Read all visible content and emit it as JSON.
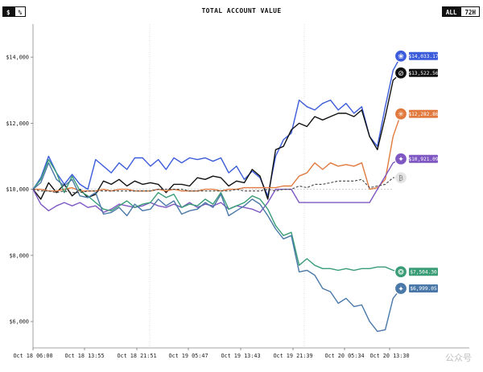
{
  "header": {
    "title": "TOTAL ACCOUNT VALUE",
    "left_toggle": [
      "$",
      "%"
    ],
    "right_toggle": [
      "ALL",
      "72H"
    ]
  },
  "watermark": "公众号",
  "chart_data": {
    "type": "line",
    "title": "TOTAL ACCOUNT VALUE",
    "xlabel": "",
    "ylabel": "",
    "ylim": [
      5200,
      15000
    ],
    "y_ticks": [
      "$6,000",
      "$8,000",
      "$10,000",
      "$12,000",
      "$14,000"
    ],
    "y_tick_values": [
      6000,
      8000,
      10000,
      12000,
      14000
    ],
    "x_ticks": [
      "Oct 18 06:00",
      "Oct 18 13:55",
      "Oct 18 21:51",
      "Oct 19 05:47",
      "Oct 19 13:43",
      "Oct 19 21:39",
      "Oct 20 05:34",
      "Oct 20 13:30"
    ],
    "grid": "vertical dotted lines",
    "baseline": 10000,
    "series": [
      {
        "color": "#3b5bdb",
        "label": "$14,033.17",
        "icon": "deepseek-whale-icon",
        "values": [
          10000,
          10350,
          11000,
          10500,
          10150,
          10450,
          10150,
          10000,
          10900,
          10700,
          10500,
          10800,
          10600,
          10950,
          10950,
          10700,
          10900,
          10600,
          10950,
          10800,
          10950,
          10900,
          10950,
          10850,
          10950,
          10500,
          10700,
          10300,
          10550,
          10350,
          9800,
          11000,
          11500,
          11700,
          12700,
          12500,
          12400,
          12600,
          12700,
          12400,
          12600,
          12300,
          12500,
          11600,
          11300,
          12500,
          13600,
          14033.17
        ]
      },
      {
        "color": "#111111",
        "label": "$13,522.56",
        "icon": "grok-icon",
        "values": [
          10000,
          9700,
          10200,
          9900,
          10150,
          9800,
          10000,
          9750,
          9850,
          10250,
          10150,
          10300,
          10100,
          10250,
          10150,
          10200,
          10150,
          9900,
          10150,
          10150,
          10100,
          10350,
          10300,
          10400,
          10350,
          10100,
          10250,
          10200,
          10600,
          10400,
          9700,
          11200,
          11300,
          11800,
          12000,
          11900,
          12200,
          12100,
          12200,
          12300,
          12300,
          12200,
          12400,
          11600,
          11200,
          12200,
          13300,
          13522.56
        ]
      },
      {
        "color": "#e07a3f",
        "label": "$12,282.86",
        "icon": "claude-icon",
        "values": [
          10000,
          10000,
          9950,
          9950,
          10000,
          10050,
          9950,
          9950,
          9950,
          10000,
          9950,
          10000,
          10000,
          9950,
          9950,
          9950,
          10000,
          9950,
          10000,
          9950,
          9950,
          9950,
          10000,
          10000,
          9950,
          10000,
          10000,
          10050,
          10050,
          10050,
          10050,
          10050,
          10100,
          10100,
          10400,
          10500,
          10800,
          10600,
          10800,
          10700,
          10750,
          10700,
          10800,
          10000,
          10050,
          10300,
          11600,
          12282.86
        ]
      },
      {
        "color": "#7e57c2",
        "label": "$10,921.09",
        "icon": "gemini-icon",
        "values": [
          10000,
          9550,
          9350,
          9500,
          9600,
          9500,
          9600,
          9450,
          9500,
          9300,
          9400,
          9550,
          9500,
          9450,
          9500,
          9600,
          9500,
          9450,
          9550,
          9450,
          9600,
          9450,
          9550,
          9500,
          9600,
          9400,
          9500,
          9450,
          9400,
          9300,
          9600,
          10000,
          10000,
          10000,
          9600,
          9600,
          9600,
          9600,
          9600,
          9600,
          9600,
          9600,
          9600,
          9600,
          10000,
          10400,
          10800,
          10921.09
        ]
      },
      {
        "color": "#3a9d78",
        "label": "$7,504.30",
        "icon": "openai-icon",
        "values": [
          10000,
          10300,
          10900,
          10500,
          9900,
          10400,
          9950,
          9800,
          9600,
          9400,
          9350,
          9500,
          9650,
          9450,
          9550,
          9600,
          9900,
          9750,
          9850,
          9450,
          9550,
          9500,
          9700,
          9550,
          9900,
          9400,
          9500,
          9600,
          9800,
          9700,
          9400,
          8900,
          8600,
          8700,
          7700,
          7900,
          7700,
          7600,
          7600,
          7550,
          7600,
          7550,
          7600,
          7600,
          7650,
          7650,
          7550,
          7504.3
        ]
      },
      {
        "color": "#4a78a8",
        "label": "$6,999.05",
        "icon": "qwen-star-icon",
        "values": [
          10000,
          10200,
          10800,
          10300,
          10100,
          10300,
          9800,
          9750,
          9900,
          9250,
          9300,
          9450,
          9200,
          9550,
          9350,
          9400,
          9700,
          9500,
          9650,
          9250,
          9350,
          9400,
          9600,
          9450,
          9850,
          9200,
          9350,
          9500,
          9700,
          9550,
          9200,
          8800,
          8500,
          8600,
          7500,
          7550,
          7400,
          7000,
          6900,
          6550,
          6700,
          6450,
          6500,
          6000,
          5700,
          5750,
          6700,
          6999.05
        ]
      },
      {
        "color": "#444444",
        "label": "",
        "icon": "btc-benchmark-icon",
        "dashed": true,
        "values": [
          10000,
          9950,
          9950,
          9900,
          9950,
          9900,
          9900,
          9950,
          9950,
          9950,
          9950,
          9950,
          9950,
          9950,
          9950,
          9950,
          10000,
          10000,
          10000,
          10000,
          9950,
          9950,
          9950,
          9950,
          9950,
          9950,
          10000,
          9950,
          9950,
          9950,
          10000,
          9950,
          10000,
          10000,
          10100,
          10050,
          10150,
          10150,
          10200,
          10250,
          10250,
          10250,
          10300,
          10050,
          10100,
          10150,
          10350,
          10350
        ]
      }
    ]
  }
}
